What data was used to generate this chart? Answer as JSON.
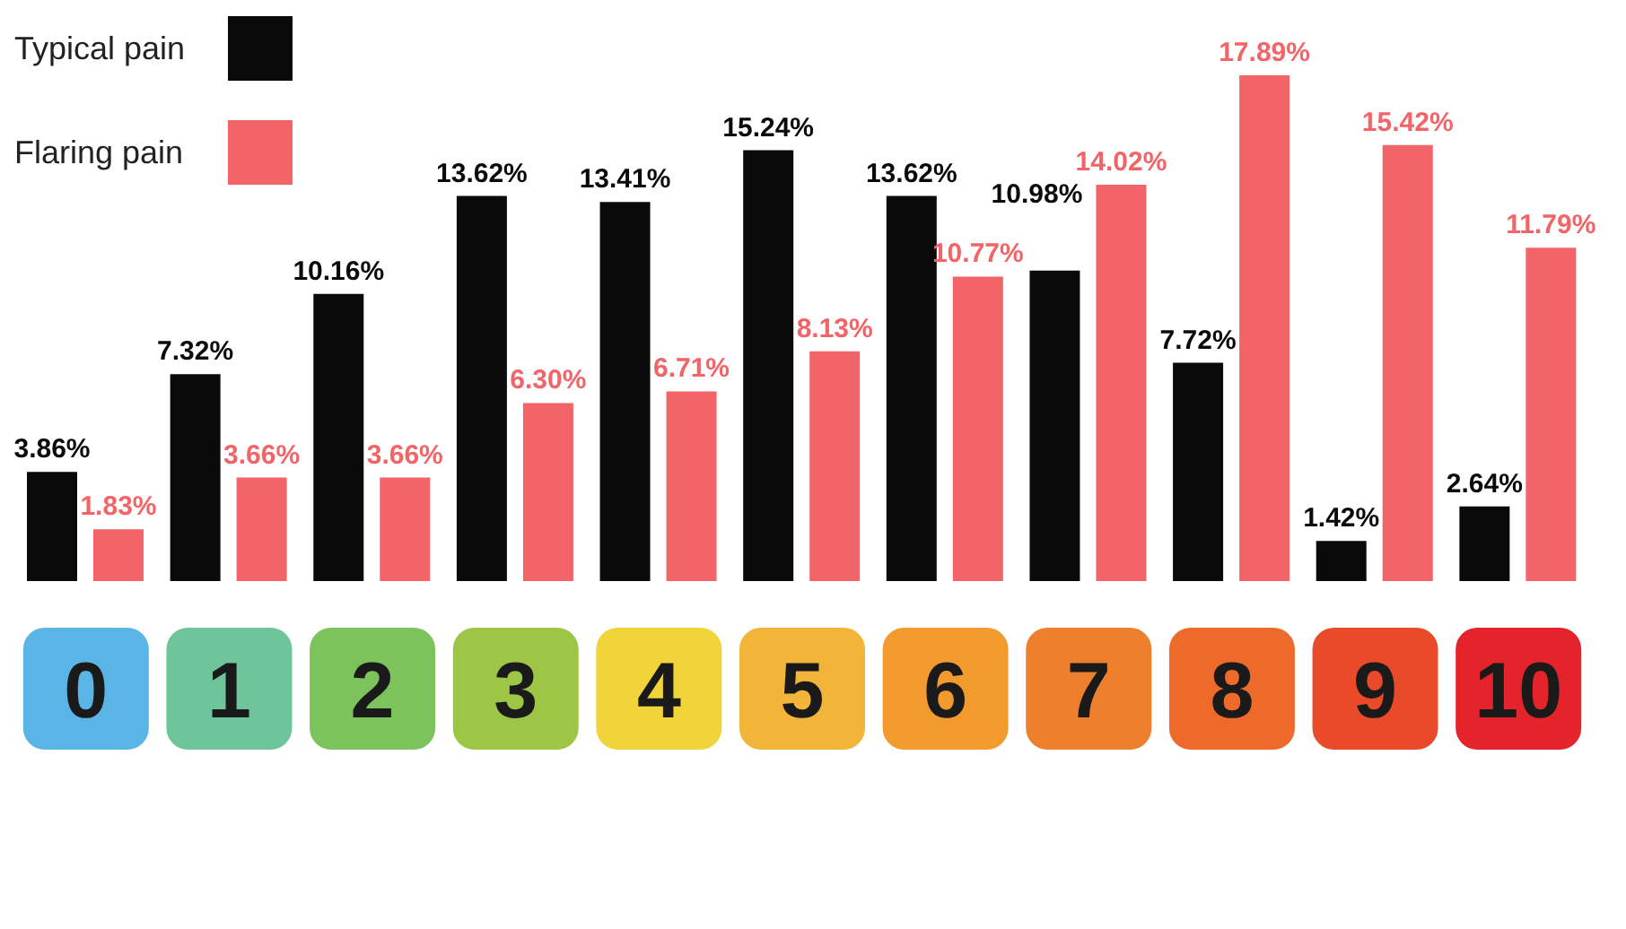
{
  "chart_data": {
    "type": "bar",
    "categories": [
      "0",
      "1",
      "2",
      "3",
      "4",
      "5",
      "6",
      "7",
      "8",
      "9",
      "10"
    ],
    "series": [
      {
        "name": "Typical pain",
        "color": "#0a0a0a",
        "values": [
          3.86,
          7.32,
          10.16,
          13.62,
          13.41,
          15.24,
          13.62,
          10.98,
          7.72,
          1.42,
          2.64
        ],
        "value_labels": [
          "3.86%",
          "7.32%",
          "10.16%",
          "13.62%",
          "13.41%",
          "15.24%",
          "13.62%",
          "10.98%",
          "7.72%",
          "1.42%",
          "2.64%"
        ]
      },
      {
        "name": "Flaring pain",
        "color": "#f26468",
        "values": [
          1.83,
          3.66,
          3.66,
          6.3,
          6.71,
          8.13,
          10.77,
          14.02,
          17.89,
          15.42,
          11.79
        ],
        "value_labels": [
          "1.83%",
          "3.66%",
          "3.66%",
          "6.30%",
          "6.71%",
          "8.13%",
          "10.77%",
          "14.02%",
          "17.89%",
          "15.42%",
          "11.79%"
        ]
      }
    ],
    "legend": "top left",
    "grid": false
  }
}
